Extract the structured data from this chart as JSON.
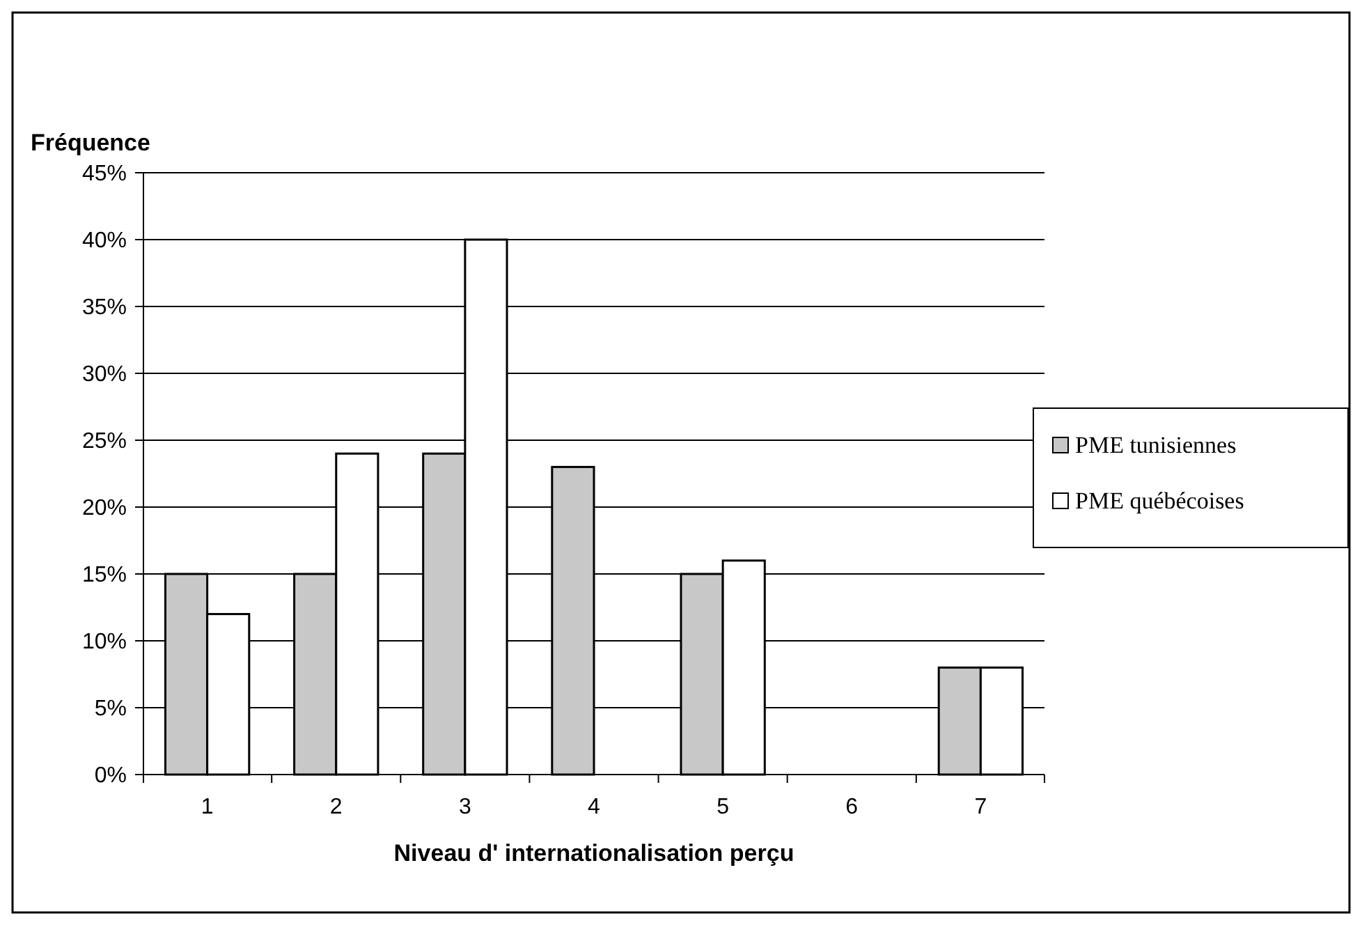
{
  "chart_data": {
    "type": "bar",
    "xlabel": "Niveau d' internationalisation perçu",
    "ylabel": "Fréquence",
    "categories": [
      "1",
      "2",
      "3",
      "4",
      "5",
      "6",
      "7"
    ],
    "series": [
      {
        "name": "PME tunisiennes",
        "color": "#c8c8c8",
        "values": [
          15,
          15,
          24,
          23,
          15,
          0,
          8
        ]
      },
      {
        "name": "PME québécoises",
        "color": "#ffffff",
        "values": [
          12,
          24,
          40,
          0,
          16,
          0,
          8
        ]
      }
    ],
    "ylim": [
      0,
      45
    ],
    "yticks": [
      {
        "value": 0,
        "label": "0%"
      },
      {
        "value": 5,
        "label": "5%"
      },
      {
        "value": 10,
        "label": "10%"
      },
      {
        "value": 15,
        "label": "15%"
      },
      {
        "value": 20,
        "label": "20%"
      },
      {
        "value": 25,
        "label": "25%"
      },
      {
        "value": 30,
        "label": "30%"
      },
      {
        "value": 35,
        "label": "35%"
      },
      {
        "value": 40,
        "label": "40%"
      },
      {
        "value": 45,
        "label": "45%"
      }
    ],
    "grid": "y",
    "legend": "right"
  }
}
